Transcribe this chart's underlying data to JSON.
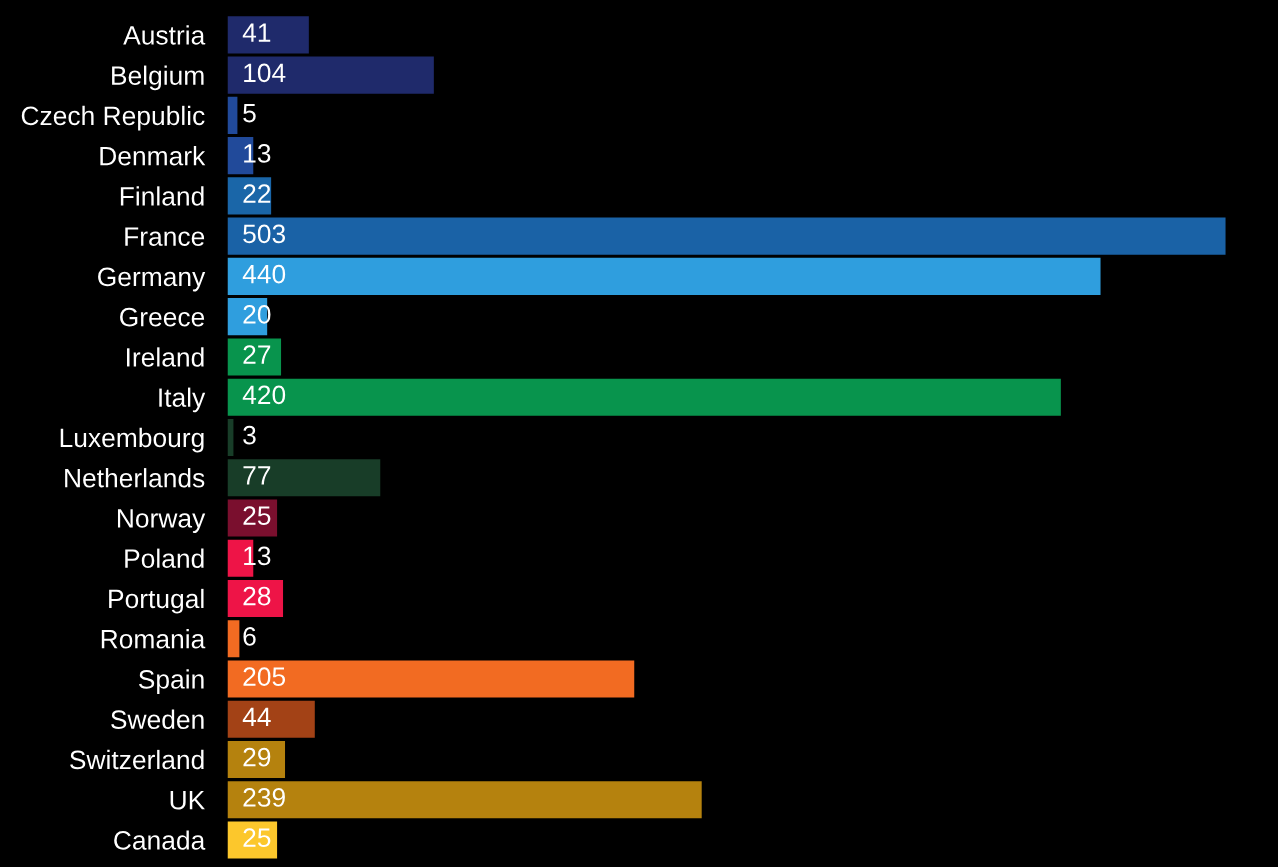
{
  "chart_data": {
    "type": "bar",
    "orientation": "horizontal",
    "data_labels": true,
    "grid": false,
    "legend": false,
    "categories": [
      "Austria",
      "Belgium",
      "Czech Republic",
      "Denmark",
      "Finland",
      "France",
      "Germany",
      "Greece",
      "Ireland",
      "Italy",
      "Luxembourg",
      "Netherlands",
      "Norway",
      "Poland",
      "Portugal",
      "Romania",
      "Spain",
      "Sweden",
      "Switzerland",
      "UK",
      "Canada"
    ],
    "values": [
      41,
      104,
      5,
      13,
      22,
      503,
      440,
      20,
      27,
      420,
      3,
      77,
      25,
      13,
      28,
      6,
      205,
      44,
      29,
      239,
      25
    ],
    "colors": [
      "#1f2a6b",
      "#1f2a6b",
      "#214a9a",
      "#214a9a",
      "#1a66a8",
      "#1a62a6",
      "#2f9ede",
      "#2f9ede",
      "#08944d",
      "#08944d",
      "#183d28",
      "#183d28",
      "#7a0f2e",
      "#ee1447",
      "#ee1447",
      "#f26b22",
      "#f26b22",
      "#a34216",
      "#b5820e",
      "#b5820e",
      "#fcc72c"
    ]
  }
}
